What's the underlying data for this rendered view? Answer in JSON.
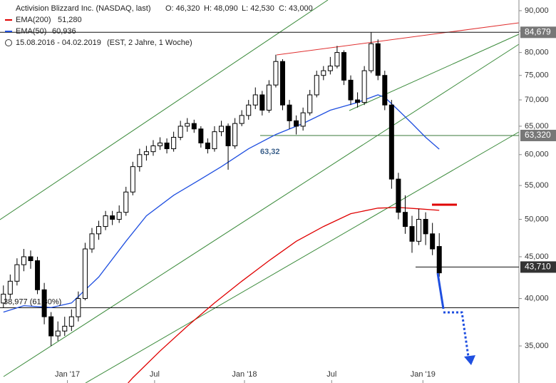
{
  "chart_data": {
    "type": "candlestick",
    "title": "Activision Blizzard Inc. (NASDAQ, last)",
    "ohlc_header": [
      "O: 46,320",
      "H: 48,090",
      "L: 42,530",
      "C: 43,000"
    ],
    "period": "15.08.2016 - 04.02.2019",
    "settings": "(EST, 2 Jahre, 1 Woche)",
    "log_scale": true,
    "xlim": [
      -0.5,
      75.7
    ],
    "xticks": [
      {
        "value": 9.4,
        "label": "Jan '17"
      },
      {
        "value": 22.2,
        "label": "Jul"
      },
      {
        "value": 35.4,
        "label": "Jan '18"
      },
      {
        "value": 48.2,
        "label": "Jul"
      },
      {
        "value": 61.6,
        "label": "Jan '19"
      }
    ],
    "ylim": [
      31530,
      92750
    ],
    "yticks": [
      {
        "value": 35000,
        "label": "35,000"
      },
      {
        "value": 40000,
        "label": "40,000"
      },
      {
        "value": 45000,
        "label": "45,000"
      },
      {
        "value": 50000,
        "label": "50,000"
      },
      {
        "value": 55000,
        "label": "55,000"
      },
      {
        "value": 60000,
        "label": "60,000"
      },
      {
        "value": 65000,
        "label": "65,000"
      },
      {
        "value": 70000,
        "label": "70,000"
      },
      {
        "value": 75000,
        "label": "75,000"
      },
      {
        "value": 80000,
        "label": "80,000"
      },
      {
        "value": 85000,
        "label": "85,000"
      },
      {
        "value": 90000,
        "label": "90,000"
      }
    ],
    "candles": [
      {
        "o": 39500,
        "h": 41500,
        "l": 39000,
        "c": 40500
      },
      {
        "o": 40500,
        "h": 42800,
        "l": 40000,
        "c": 42000
      },
      {
        "o": 42000,
        "h": 44800,
        "l": 41500,
        "c": 44000
      },
      {
        "o": 44000,
        "h": 46000,
        "l": 43200,
        "c": 45000
      },
      {
        "o": 45000,
        "h": 45800,
        "l": 43500,
        "c": 44500
      },
      {
        "o": 44500,
        "h": 45000,
        "l": 40500,
        "c": 41000
      },
      {
        "o": 41000,
        "h": 41800,
        "l": 37200,
        "c": 38000
      },
      {
        "o": 38000,
        "h": 38500,
        "l": 35000,
        "c": 36000
      },
      {
        "o": 36000,
        "h": 37500,
        "l": 35500,
        "c": 36500
      },
      {
        "o": 36500,
        "h": 38000,
        "l": 36000,
        "c": 37000
      },
      {
        "o": 37000,
        "h": 38800,
        "l": 36500,
        "c": 38000
      },
      {
        "o": 38000,
        "h": 40800,
        "l": 37500,
        "c": 40000
      },
      {
        "o": 40000,
        "h": 46800,
        "l": 39800,
        "c": 46000
      },
      {
        "o": 46000,
        "h": 48800,
        "l": 45500,
        "c": 48000
      },
      {
        "o": 48000,
        "h": 49800,
        "l": 47200,
        "c": 49000
      },
      {
        "o": 49000,
        "h": 51200,
        "l": 48500,
        "c": 50500
      },
      {
        "o": 50500,
        "h": 51200,
        "l": 49200,
        "c": 50000
      },
      {
        "o": 50000,
        "h": 52000,
        "l": 49500,
        "c": 51000
      },
      {
        "o": 51000,
        "h": 54800,
        "l": 50500,
        "c": 54000
      },
      {
        "o": 54000,
        "h": 58800,
        "l": 53500,
        "c": 58000
      },
      {
        "o": 58000,
        "h": 61000,
        "l": 57200,
        "c": 60000
      },
      {
        "o": 60000,
        "h": 61500,
        "l": 59000,
        "c": 60500
      },
      {
        "o": 60500,
        "h": 62500,
        "l": 59800,
        "c": 61500
      },
      {
        "o": 61500,
        "h": 63000,
        "l": 60800,
        "c": 62000
      },
      {
        "o": 62000,
        "h": 62800,
        "l": 60200,
        "c": 61000
      },
      {
        "o": 61000,
        "h": 64000,
        "l": 60500,
        "c": 63000
      },
      {
        "o": 63000,
        "h": 66000,
        "l": 62500,
        "c": 65000
      },
      {
        "o": 65000,
        "h": 66500,
        "l": 64000,
        "c": 65500
      },
      {
        "o": 65500,
        "h": 66200,
        "l": 63800,
        "c": 64500
      },
      {
        "o": 64500,
        "h": 65000,
        "l": 61200,
        "c": 62000
      },
      {
        "o": 62000,
        "h": 62800,
        "l": 60200,
        "c": 61000
      },
      {
        "o": 61000,
        "h": 65000,
        "l": 60500,
        "c": 64000
      },
      {
        "o": 64000,
        "h": 66000,
        "l": 63200,
        "c": 65000
      },
      {
        "o": 65000,
        "h": 65500,
        "l": 57500,
        "c": 61500
      },
      {
        "o": 61500,
        "h": 66500,
        "l": 61000,
        "c": 65500
      },
      {
        "o": 65500,
        "h": 68000,
        "l": 65000,
        "c": 67000
      },
      {
        "o": 67000,
        "h": 70000,
        "l": 66200,
        "c": 69000
      },
      {
        "o": 69000,
        "h": 72500,
        "l": 68200,
        "c": 71000
      },
      {
        "o": 71000,
        "h": 71800,
        "l": 67000,
        "c": 68000
      },
      {
        "o": 68000,
        "h": 74000,
        "l": 67500,
        "c": 73000
      },
      {
        "o": 73000,
        "h": 79500,
        "l": 72500,
        "c": 78000
      },
      {
        "o": 78000,
        "h": 78500,
        "l": 68000,
        "c": 69000
      },
      {
        "o": 69000,
        "h": 70000,
        "l": 64500,
        "c": 66000
      },
      {
        "o": 66000,
        "h": 67000,
        "l": 63500,
        "c": 65000
      },
      {
        "o": 65000,
        "h": 68500,
        "l": 64200,
        "c": 67500
      },
      {
        "o": 67500,
        "h": 72000,
        "l": 67000,
        "c": 71000
      },
      {
        "o": 71000,
        "h": 76000,
        "l": 70500,
        "c": 75000
      },
      {
        "o": 75000,
        "h": 77000,
        "l": 74000,
        "c": 76000
      },
      {
        "o": 76000,
        "h": 79000,
        "l": 75200,
        "c": 77000
      },
      {
        "o": 77000,
        "h": 81500,
        "l": 76500,
        "c": 80000
      },
      {
        "o": 80000,
        "h": 80500,
        "l": 73000,
        "c": 74000
      },
      {
        "o": 74000,
        "h": 75000,
        "l": 69000,
        "c": 70000
      },
      {
        "o": 70000,
        "h": 71500,
        "l": 68500,
        "c": 69500
      },
      {
        "o": 69500,
        "h": 77000,
        "l": 69000,
        "c": 76000
      },
      {
        "o": 76000,
        "h": 84700,
        "l": 75500,
        "c": 82000
      },
      {
        "o": 82000,
        "h": 83000,
        "l": 74000,
        "c": 75000
      },
      {
        "o": 75000,
        "h": 76000,
        "l": 68000,
        "c": 69000
      },
      {
        "o": 69000,
        "h": 70000,
        "l": 54500,
        "c": 56000
      },
      {
        "o": 56000,
        "h": 57000,
        "l": 50000,
        "c": 51000
      },
      {
        "o": 51000,
        "h": 53500,
        "l": 48000,
        "c": 49000
      },
      {
        "o": 49000,
        "h": 50500,
        "l": 45500,
        "c": 47000
      },
      {
        "o": 47000,
        "h": 51500,
        "l": 46500,
        "c": 50000
      },
      {
        "o": 50000,
        "h": 51000,
        "l": 46500,
        "c": 48000
      },
      {
        "o": 48000,
        "h": 49500,
        "l": 45200,
        "c": 46000
      },
      {
        "o": 46320,
        "h": 48090,
        "l": 42530,
        "c": 43000
      }
    ],
    "series": [
      {
        "name": "EMA(200)",
        "color": "#e00000",
        "last_label": "51,280",
        "x": [
          18.3,
          19,
          23,
          27,
          31,
          35,
          39,
          43,
          47,
          51,
          55,
          58,
          61,
          64
        ],
        "values": [
          31530,
          32000,
          34500,
          37000,
          39500,
          42000,
          44500,
          47000,
          49000,
          50800,
          51600,
          51700,
          51500,
          51280
        ]
      },
      {
        "name": "EMA(50)",
        "color": "#1f4fe0",
        "last_label": "60,936",
        "x": [
          0,
          3,
          7,
          10,
          14,
          18,
          21,
          25,
          29,
          32,
          36,
          40,
          44,
          48,
          52,
          55,
          56,
          58,
          60,
          62,
          64
        ],
        "values": [
          38500,
          39200,
          39000,
          39500,
          42500,
          47000,
          50500,
          53500,
          56000,
          58000,
          61000,
          63500,
          65500,
          68000,
          69500,
          71000,
          70500,
          68000,
          65500,
          63000,
          60936
        ]
      }
    ],
    "levels": [
      {
        "value": 84679,
        "label": "84,679"
      },
      {
        "value": 63320,
        "label": "63,320"
      },
      {
        "value": 43710,
        "label": "43,710"
      },
      {
        "value": 38977,
        "label": "38,977 (61,80%)"
      }
    ],
    "annotation": "63,32"
  }
}
